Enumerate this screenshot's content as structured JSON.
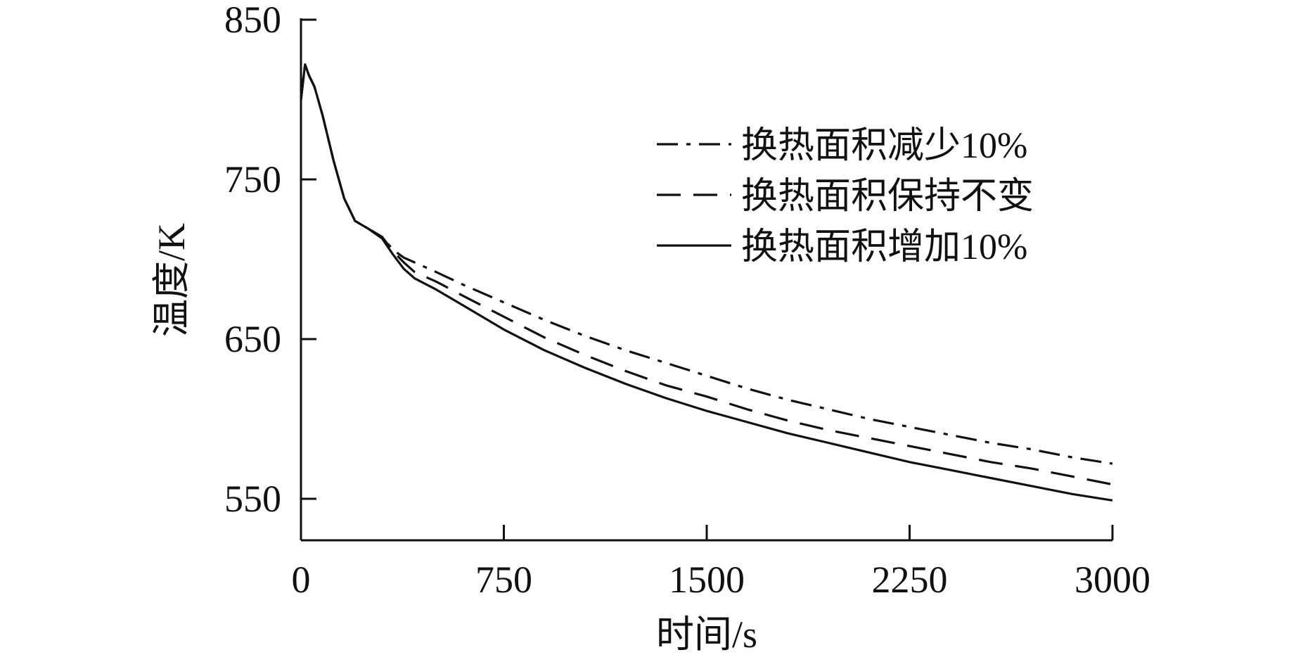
{
  "chart_data": {
    "type": "line",
    "title": "",
    "xlabel": "时间/s",
    "ylabel": "温度/K",
    "xlim": [
      0,
      3000
    ],
    "ylim": [
      525,
      850
    ],
    "x_ticks": [
      0,
      750,
      1500,
      2250,
      3000
    ],
    "y_ticks": [
      550,
      650,
      750,
      850
    ],
    "grid": false,
    "legend_position": "top-right",
    "series": [
      {
        "name": "换热面积减少10%",
        "dash": "dashdot",
        "color": "#111111",
        "points": [
          [
            0,
            800
          ],
          [
            15,
            822
          ],
          [
            30,
            815
          ],
          [
            50,
            808
          ],
          [
            80,
            790
          ],
          [
            120,
            762
          ],
          [
            160,
            738
          ],
          [
            200,
            724
          ],
          [
            250,
            719
          ],
          [
            300,
            714
          ],
          [
            340,
            706
          ],
          [
            380,
            701
          ],
          [
            420,
            698
          ],
          [
            500,
            692
          ],
          [
            600,
            684
          ],
          [
            750,
            673
          ],
          [
            900,
            662
          ],
          [
            1050,
            652
          ],
          [
            1200,
            643
          ],
          [
            1350,
            635
          ],
          [
            1500,
            627
          ],
          [
            1650,
            619
          ],
          [
            1800,
            612
          ],
          [
            1950,
            606
          ],
          [
            2100,
            600
          ],
          [
            2250,
            595
          ],
          [
            2400,
            590
          ],
          [
            2550,
            585
          ],
          [
            2700,
            581
          ],
          [
            2850,
            576
          ],
          [
            3000,
            572
          ]
        ]
      },
      {
        "name": "换热面积保持不变",
        "dash": "dashed",
        "color": "#111111",
        "points": [
          [
            0,
            800
          ],
          [
            15,
            822
          ],
          [
            30,
            815
          ],
          [
            50,
            808
          ],
          [
            80,
            790
          ],
          [
            120,
            762
          ],
          [
            160,
            738
          ],
          [
            200,
            724
          ],
          [
            250,
            719
          ],
          [
            300,
            714
          ],
          [
            340,
            705
          ],
          [
            380,
            698
          ],
          [
            420,
            692
          ],
          [
            500,
            686
          ],
          [
            600,
            677
          ],
          [
            750,
            664
          ],
          [
            900,
            651
          ],
          [
            1050,
            640
          ],
          [
            1200,
            630
          ],
          [
            1350,
            621
          ],
          [
            1500,
            614
          ],
          [
            1650,
            606
          ],
          [
            1800,
            599
          ],
          [
            1950,
            593
          ],
          [
            2100,
            588
          ],
          [
            2250,
            583
          ],
          [
            2400,
            578
          ],
          [
            2550,
            573
          ],
          [
            2700,
            569
          ],
          [
            2850,
            564
          ],
          [
            3000,
            559
          ]
        ]
      },
      {
        "name": "换热面积增加10%",
        "dash": "solid",
        "color": "#111111",
        "points": [
          [
            0,
            800
          ],
          [
            15,
            822
          ],
          [
            30,
            815
          ],
          [
            50,
            808
          ],
          [
            80,
            790
          ],
          [
            120,
            762
          ],
          [
            160,
            738
          ],
          [
            200,
            724
          ],
          [
            250,
            719
          ],
          [
            300,
            713
          ],
          [
            340,
            703
          ],
          [
            380,
            694
          ],
          [
            420,
            688
          ],
          [
            500,
            681
          ],
          [
            600,
            671
          ],
          [
            750,
            656
          ],
          [
            900,
            643
          ],
          [
            1050,
            632
          ],
          [
            1200,
            622
          ],
          [
            1350,
            613
          ],
          [
            1500,
            605
          ],
          [
            1650,
            598
          ],
          [
            1800,
            591
          ],
          [
            1950,
            585
          ],
          [
            2100,
            579
          ],
          [
            2250,
            573
          ],
          [
            2400,
            568
          ],
          [
            2550,
            563
          ],
          [
            2700,
            558
          ],
          [
            2850,
            553
          ],
          [
            3000,
            549
          ]
        ]
      }
    ]
  }
}
